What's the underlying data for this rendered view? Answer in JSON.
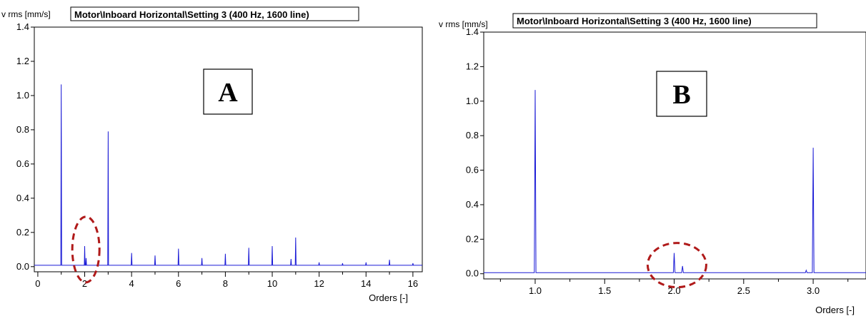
{
  "colors": {
    "trace": "#1a1ad6",
    "marker": "#b01a1a",
    "frame": "#000000",
    "background": "#ffffff"
  },
  "chart_data": [
    {
      "type": "line",
      "panel_label": "A",
      "title": "Motor\\Inboard Horizontal\\Setting 3 (400 Hz, 1600 line)",
      "ylabel": "v rms [mm/s]",
      "xlabel": "Orders [-]",
      "xlim": [
        -0.15,
        16.4
      ],
      "ylim": [
        -0.03,
        1.4
      ],
      "x_ticks": [
        0,
        2,
        4,
        6,
        8,
        10,
        12,
        14,
        16
      ],
      "x_tick_labels": [
        "0",
        "2",
        "4",
        "6",
        "8",
        "10",
        "12",
        "14",
        "16"
      ],
      "y_ticks": [
        0.0,
        0.2,
        0.4,
        0.6,
        0.8,
        1.0,
        1.2,
        1.4
      ],
      "y_tick_labels": [
        "0.0",
        "0.2",
        "0.4",
        "0.6",
        "0.8",
        "1.0",
        "1.2",
        "1.4"
      ],
      "grid": false,
      "baseline": 0.008,
      "peaks": [
        {
          "x": 1.0,
          "y": 1.065
        },
        {
          "x": 2.0,
          "y": 0.12
        },
        {
          "x": 2.06,
          "y": 0.05
        },
        {
          "x": 3.0,
          "y": 0.79
        },
        {
          "x": 4.0,
          "y": 0.08
        },
        {
          "x": 5.0,
          "y": 0.065
        },
        {
          "x": 6.0,
          "y": 0.105
        },
        {
          "x": 7.0,
          "y": 0.05
        },
        {
          "x": 8.0,
          "y": 0.075
        },
        {
          "x": 9.0,
          "y": 0.11
        },
        {
          "x": 10.0,
          "y": 0.12
        },
        {
          "x": 10.8,
          "y": 0.045
        },
        {
          "x": 11.0,
          "y": 0.17
        },
        {
          "x": 12.0,
          "y": 0.025
        },
        {
          "x": 13.0,
          "y": 0.02
        },
        {
          "x": 14.0,
          "y": 0.025
        },
        {
          "x": 15.0,
          "y": 0.04
        },
        {
          "x": 16.0,
          "y": 0.02
        }
      ],
      "highlight": {
        "x": 2.05,
        "y": 0.1
      }
    },
    {
      "type": "line",
      "panel_label": "B",
      "title": "Motor\\Inboard Horizontal\\Setting 3 (400 Hz, 1600 line)",
      "ylabel": "v rms [mm/s]",
      "xlabel": "Orders [-]",
      "xlim": [
        0.63,
        3.38
      ],
      "ylim": [
        -0.03,
        1.4
      ],
      "x_ticks": [
        1.0,
        1.5,
        2.0,
        2.5,
        3.0
      ],
      "x_tick_labels": [
        "1.0",
        "1.5",
        "2.0",
        "2.5",
        "3.0"
      ],
      "y_ticks": [
        0.0,
        0.2,
        0.4,
        0.6,
        0.8,
        1.0,
        1.2,
        1.4
      ],
      "y_tick_labels": [
        "0.0",
        "0.2",
        "0.4",
        "0.6",
        "0.8",
        "1.0",
        "1.2",
        "1.4"
      ],
      "grid": false,
      "baseline": 0.006,
      "peaks": [
        {
          "x": 1.0,
          "y": 1.065
        },
        {
          "x": 2.0,
          "y": 0.12
        },
        {
          "x": 2.06,
          "y": 0.045
        },
        {
          "x": 3.0,
          "y": 0.73
        },
        {
          "x": 2.95,
          "y": 0.02
        }
      ],
      "highlight": {
        "x": 2.02,
        "y": 0.05
      }
    }
  ]
}
